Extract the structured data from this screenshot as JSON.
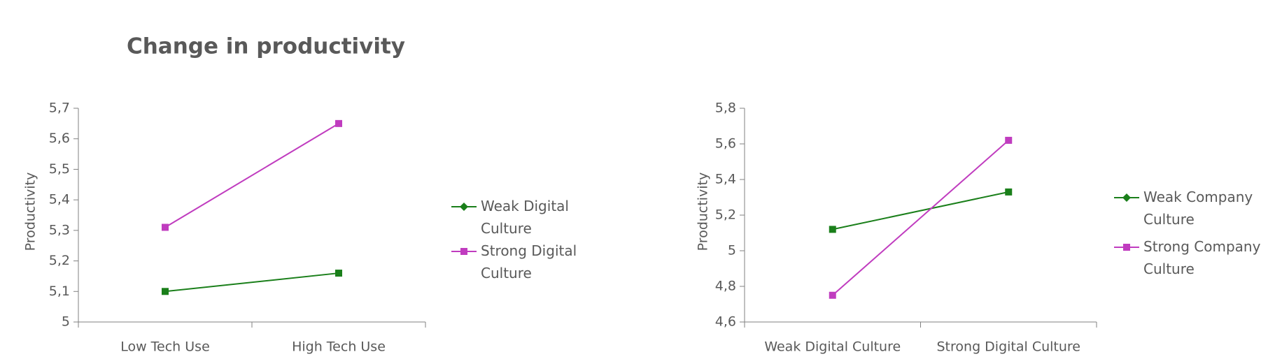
{
  "chart_data": [
    {
      "type": "line",
      "title": "Change in productivity",
      "y_label": "Productivity",
      "categories": [
        "Low Tech Use",
        "High Tech Use"
      ],
      "series": [
        {
          "name": "Weak Digital Culture",
          "color": "#1a7f1a",
          "values": [
            5.1,
            5.16
          ]
        },
        {
          "name": "Strong Digital Culture",
          "color": "#c03cbf",
          "values": [
            5.31,
            5.65
          ]
        }
      ],
      "ylim": [
        5,
        5.7
      ],
      "yticks": [
        5,
        {
          "value": 5.1,
          "label": "5,1"
        },
        {
          "value": 5.2,
          "label": "5,2"
        },
        {
          "value": 5.3,
          "label": "5,3"
        },
        {
          "value": 5.4,
          "label": "5,4"
        },
        {
          "value": 5.5,
          "label": "5,5"
        },
        {
          "value": 5.6,
          "label": "5,6"
        },
        {
          "value": 5.7,
          "label": "5,7"
        }
      ]
    },
    {
      "type": "line",
      "y_label": "Productivity",
      "categories": [
        "Weak Digital Culture",
        "Strong Digital Culture"
      ],
      "series": [
        {
          "name": "Weak Company Culture",
          "color": "#1a7f1a",
          "values": [
            5.12,
            5.33
          ]
        },
        {
          "name": "Strong Company Culture",
          "color": "#c03cbf",
          "values": [
            4.75,
            5.62
          ]
        }
      ],
      "ylim": [
        4.6,
        5.8
      ],
      "yticks": [
        {
          "value": 4.6,
          "label": "4,6"
        },
        {
          "value": 4.8,
          "label": "4,8"
        },
        5,
        {
          "value": 5.2,
          "label": "5,2"
        },
        {
          "value": 5.4,
          "label": "5,4"
        },
        {
          "value": 5.6,
          "label": "5,6"
        },
        {
          "value": 5.8,
          "label": "5,8"
        }
      ]
    }
  ]
}
